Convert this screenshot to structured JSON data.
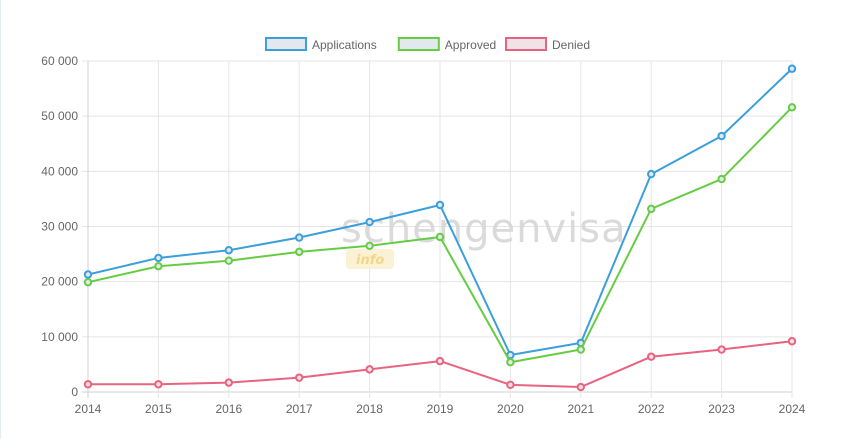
{
  "chart_data": {
    "type": "line",
    "x": [
      "2014",
      "2015",
      "2016",
      "2017",
      "2018",
      "2019",
      "2020",
      "2021",
      "2022",
      "2023",
      "2024"
    ],
    "series": [
      {
        "name": "Applications",
        "color": "#3b9fdc",
        "fill": "#e3e8ee",
        "values": [
          21300,
          24300,
          25700,
          28000,
          30800,
          33900,
          6700,
          8900,
          39500,
          46400,
          58600
        ]
      },
      {
        "name": "Approved",
        "color": "#66cc44",
        "fill": "#e3e8ee",
        "values": [
          19900,
          22800,
          23800,
          25400,
          26500,
          28100,
          5400,
          7700,
          33200,
          38600,
          51600
        ]
      },
      {
        "name": "Denied",
        "color": "#e8637f",
        "fill": "#f1e2e6",
        "values": [
          1400,
          1400,
          1700,
          2600,
          4100,
          5600,
          1300,
          900,
          6400,
          7700,
          9200
        ]
      }
    ],
    "yticks": [
      "0",
      "10 000",
      "20 000",
      "30 000",
      "40 000",
      "50 000",
      "60 000"
    ],
    "ylim": [
      0,
      60000
    ],
    "grid": true,
    "legend_position": "top-center",
    "watermark": {
      "main": "schengenvisa",
      "sub": "info"
    }
  }
}
